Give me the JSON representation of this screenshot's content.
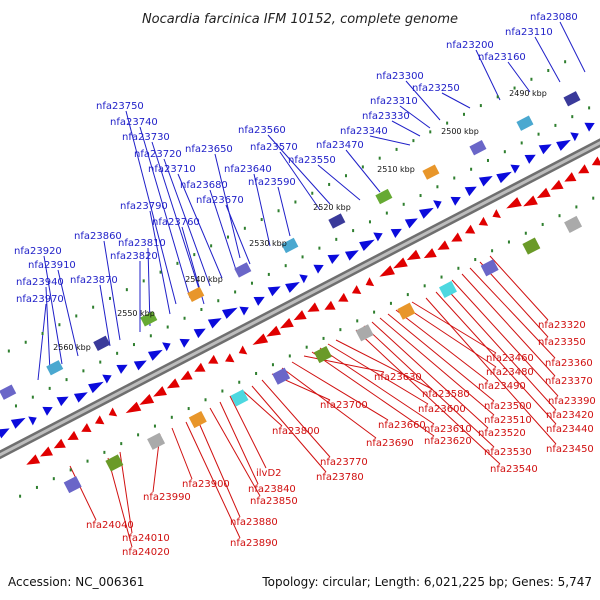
{
  "title": "Nocardia farcinica IFM 10152, complete genome",
  "footer": {
    "accession": "Accession: NC_006361",
    "summary": "Topology: circular; Length: 6,021,225 bp; Genes: 5,747"
  },
  "colors": {
    "forward_label": "#1f1fc8",
    "reverse_label": "#d01010",
    "forward_arrow": "#0b0bdc",
    "reverse_arrow": "#e00000",
    "backbone": "#8c8c8c",
    "dots": "#2f7f2f"
  },
  "ticks": [
    "2490 kbp",
    "2500 kbp",
    "2510 kbp",
    "2520 kbp",
    "2530 kbp",
    "2540 kbp",
    "2550 kbp",
    "2560 kbp"
  ],
  "forward_genes": [
    "nfa23080",
    "nfa23110",
    "nfa23160",
    "nfa23200",
    "nfa23250",
    "nfa23300",
    "nfa23310",
    "nfa23330",
    "nfa23340",
    "nfa23470",
    "nfa23550",
    "nfa23560",
    "nfa23570",
    "nfa23590",
    "nfa23640",
    "nfa23650",
    "nfa23670",
    "nfa23680",
    "nfa23710",
    "nfa23720",
    "nfa23730",
    "nfa23740",
    "nfa23750",
    "nfa23760",
    "nfa23790",
    "nfa23810",
    "nfa23820",
    "nfa23860",
    "nfa23870",
    "nfa23910",
    "nfa23920",
    "nfa23940",
    "nfa23970"
  ],
  "reverse_genes": [
    "nfa23320",
    "nfa23350",
    "nfa23360",
    "nfa23370",
    "nfa23390",
    "nfa23420",
    "nfa23440",
    "nfa23450",
    "nfa23460",
    "nfa23480",
    "nfa23490",
    "nfa23500",
    "nfa23510",
    "nfa23520",
    "nfa23530",
    "nfa23540",
    "nfa23580",
    "nfa23600",
    "nfa23610",
    "nfa23620",
    "nfa23630",
    "nfa23660",
    "nfa23690",
    "nfa23700",
    "nfa23770",
    "nfa23780",
    "nfa23800",
    "ilvD2",
    "nfa23840",
    "nfa23850",
    "nfa23880",
    "nfa23890",
    "nfa23900",
    "nfa23990",
    "nfa24010",
    "nfa24020",
    "nfa24040"
  ]
}
